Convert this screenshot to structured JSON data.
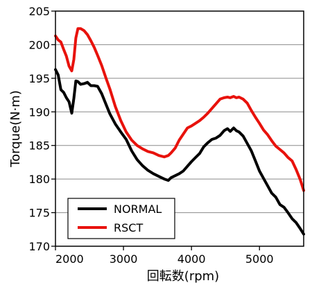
{
  "chart_data": {
    "type": "line",
    "title": "",
    "xlabel": "回転数(rpm)",
    "ylabel": "Torque(N·m)",
    "xlim": [
      2000,
      5650
    ],
    "ylim": [
      170,
      205
    ],
    "xticks": [
      2000,
      3000,
      4000,
      5000
    ],
    "xtick_labels": [
      "2000",
      "3000",
      "4000",
      "5000"
    ],
    "yticks": [
      170,
      175,
      180,
      185,
      190,
      195,
      200,
      205
    ],
    "ytick_labels": [
      "170",
      "175",
      "180",
      "185",
      "190",
      "195",
      "200",
      "205"
    ],
    "grid": "horizontal",
    "legend_position": "bottom-left",
    "series": [
      {
        "name": "NORMAL",
        "color": "#000000",
        "x": [
          2000,
          2040,
          2080,
          2120,
          2160,
          2200,
          2240,
          2270,
          2300,
          2330,
          2370,
          2420,
          2470,
          2520,
          2570,
          2620,
          2680,
          2740,
          2800,
          2880,
          2960,
          3040,
          3120,
          3200,
          3280,
          3360,
          3440,
          3520,
          3600,
          3660,
          3700,
          3760,
          3820,
          3880,
          3940,
          4000,
          4060,
          4120,
          4180,
          4240,
          4300,
          4360,
          4420,
          4480,
          4530,
          4570,
          4620,
          4660,
          4700,
          4760,
          4820,
          4880,
          4940,
          5000,
          5060,
          5120,
          5180,
          5240,
          5300,
          5360,
          5420,
          5480,
          5540,
          5600,
          5650
        ],
        "values": [
          196.3,
          195.5,
          193.3,
          192.9,
          192.1,
          191.5,
          189.8,
          192.0,
          194.6,
          194.5,
          194.1,
          194.2,
          194.4,
          193.9,
          193.9,
          193.8,
          192.7,
          191.2,
          189.7,
          188.2,
          187.0,
          185.9,
          184.2,
          182.9,
          182.0,
          181.3,
          180.8,
          180.4,
          180.0,
          179.8,
          180.2,
          180.5,
          180.8,
          181.2,
          181.9,
          182.6,
          183.2,
          183.8,
          184.8,
          185.4,
          185.9,
          186.1,
          186.5,
          187.2,
          187.5,
          187.1,
          187.6,
          187.2,
          187.0,
          186.4,
          185.3,
          184.2,
          182.7,
          181.2,
          180.1,
          179.0,
          177.9,
          177.3,
          176.2,
          175.8,
          175.0,
          174.1,
          173.5,
          172.6,
          171.8
        ]
      },
      {
        "name": "RSCT",
        "color": "#e8120c",
        "x": [
          2000,
          2040,
          2080,
          2120,
          2160,
          2200,
          2240,
          2270,
          2300,
          2330,
          2370,
          2420,
          2470,
          2520,
          2570,
          2620,
          2680,
          2740,
          2800,
          2880,
          2960,
          3040,
          3120,
          3200,
          3280,
          3360,
          3440,
          3520,
          3600,
          3660,
          3700,
          3760,
          3820,
          3880,
          3940,
          4000,
          4060,
          4120,
          4180,
          4240,
          4300,
          4360,
          4420,
          4480,
          4530,
          4570,
          4620,
          4660,
          4700,
          4760,
          4820,
          4880,
          4940,
          5000,
          5060,
          5120,
          5180,
          5240,
          5300,
          5360,
          5420,
          5480,
          5540,
          5600,
          5650
        ],
        "values": [
          201.3,
          200.7,
          200.4,
          199.3,
          198.3,
          196.8,
          196.1,
          197.8,
          201.0,
          202.4,
          202.4,
          202.1,
          201.5,
          200.6,
          199.6,
          198.4,
          196.9,
          195.1,
          193.4,
          190.8,
          188.7,
          187.0,
          185.8,
          185.0,
          184.5,
          184.1,
          183.9,
          183.5,
          183.3,
          183.5,
          183.9,
          184.6,
          185.8,
          186.7,
          187.6,
          187.9,
          188.3,
          188.7,
          189.2,
          189.8,
          190.5,
          191.2,
          191.9,
          192.1,
          192.2,
          192.1,
          192.3,
          192.1,
          192.2,
          191.9,
          191.3,
          190.2,
          189.2,
          188.3,
          187.3,
          186.6,
          185.7,
          184.9,
          184.4,
          183.9,
          183.2,
          182.7,
          181.4,
          179.9,
          178.3
        ]
      }
    ]
  }
}
